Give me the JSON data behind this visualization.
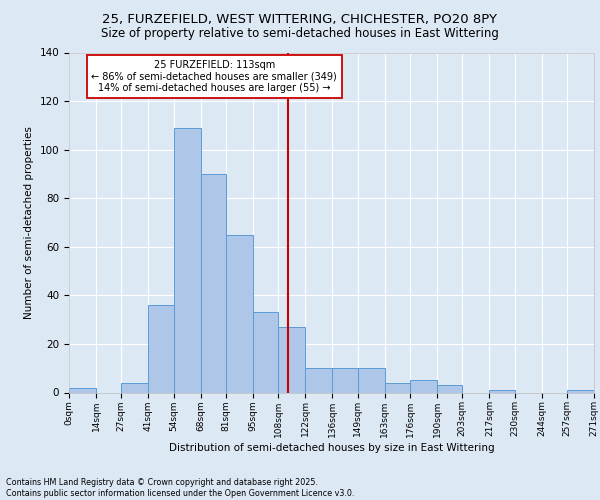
{
  "title_line1": "25, FURZEFIELD, WEST WITTERING, CHICHESTER, PO20 8PY",
  "title_line2": "Size of property relative to semi-detached houses in East Wittering",
  "xlabel": "Distribution of semi-detached houses by size in East Wittering",
  "ylabel": "Number of semi-detached properties",
  "footer": "Contains HM Land Registry data © Crown copyright and database right 2025.\nContains public sector information licensed under the Open Government Licence v3.0.",
  "bin_edges": [
    0,
    14,
    27,
    41,
    54,
    68,
    81,
    95,
    108,
    122,
    136,
    149,
    163,
    176,
    190,
    203,
    217,
    230,
    244,
    257,
    271
  ],
  "bin_labels": [
    "0sqm",
    "14sqm",
    "27sqm",
    "41sqm",
    "54sqm",
    "68sqm",
    "81sqm",
    "95sqm",
    "108sqm",
    "122sqm",
    "136sqm",
    "149sqm",
    "163sqm",
    "176sqm",
    "190sqm",
    "203sqm",
    "217sqm",
    "230sqm",
    "244sqm",
    "257sqm",
    "271sqm"
  ],
  "bar_heights": [
    2,
    0,
    4,
    36,
    109,
    90,
    65,
    33,
    27,
    10,
    10,
    10,
    4,
    5,
    3,
    0,
    1,
    0,
    0,
    1
  ],
  "bar_color": "#aec6e8",
  "bar_edge_color": "#5b9bd5",
  "property_value": 113,
  "vline_color": "#cc0000",
  "annotation_title": "25 FURZEFIELD: 113sqm",
  "annotation_line2": "← 86% of semi-detached houses are smaller (349)",
  "annotation_line3": "14% of semi-detached houses are larger (55) →",
  "annotation_box_color": "#ffffff",
  "annotation_box_edge": "#cc0000",
  "ylim": [
    0,
    140
  ],
  "yticks": [
    0,
    20,
    40,
    60,
    80,
    100,
    120,
    140
  ],
  "background_color": "#dde8f5",
  "axes_background": "#dde8f5"
}
